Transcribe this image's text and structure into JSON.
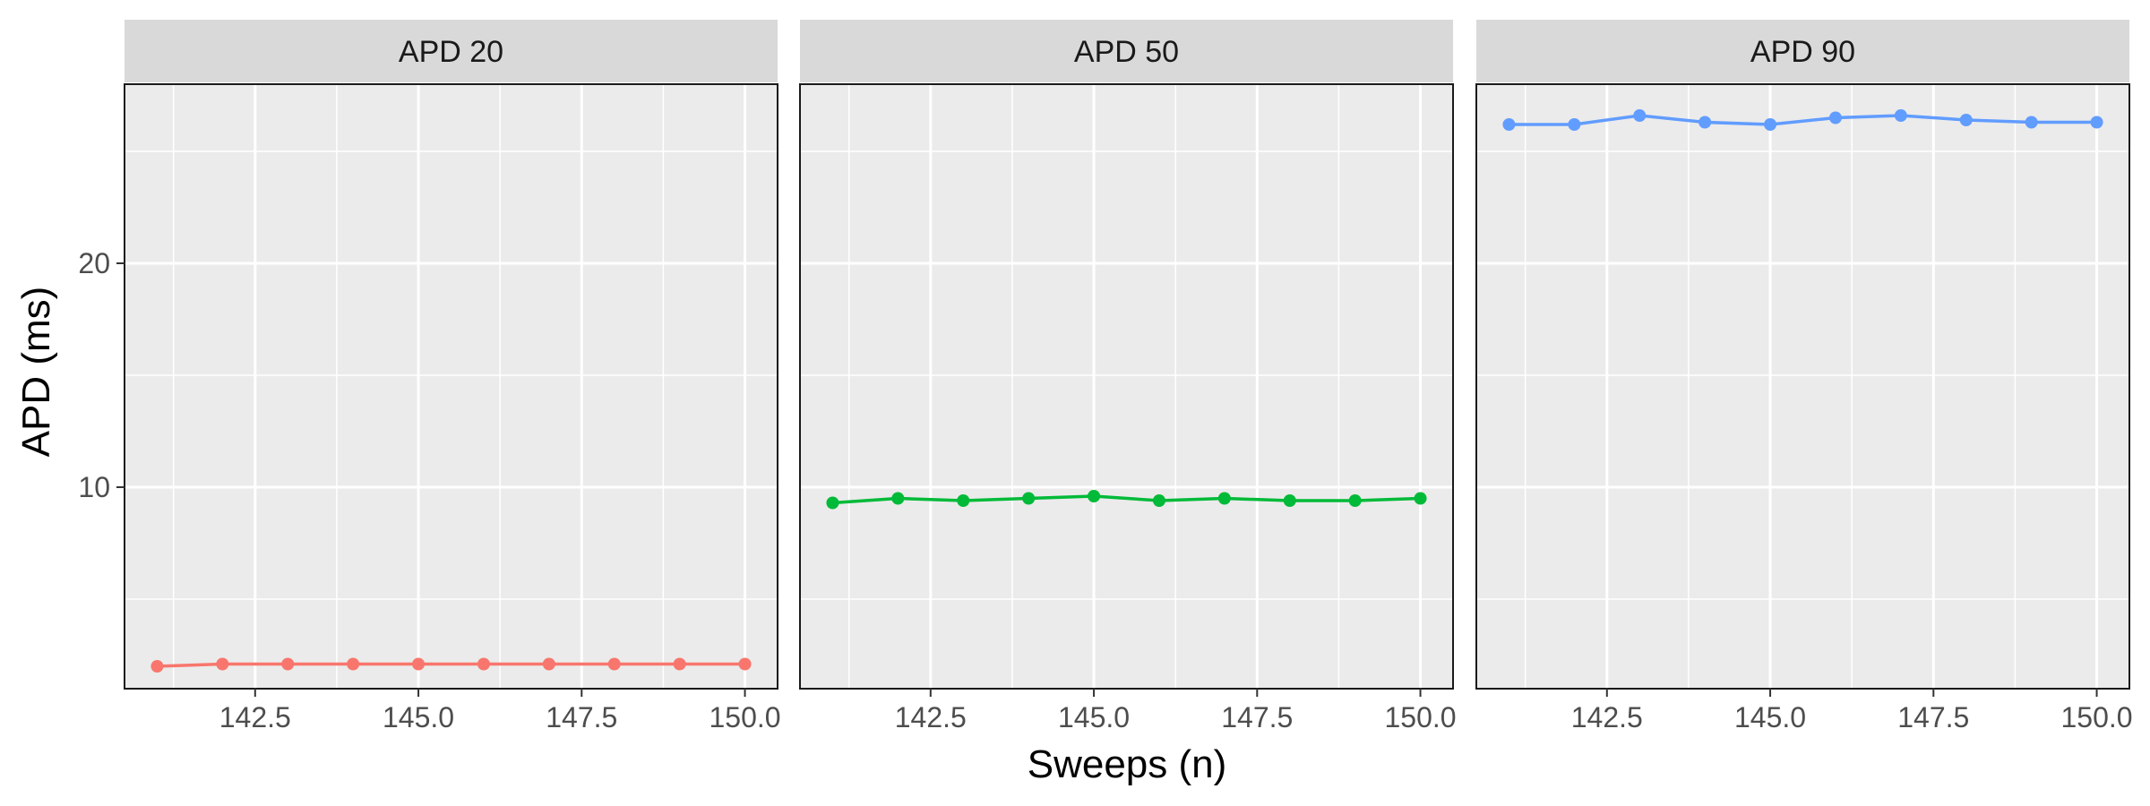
{
  "chart_data": {
    "type": "line",
    "facet_layout": "three panels in one row, shared y axis",
    "xlabel": "Sweeps (n)",
    "ylabel": "APD (ms)",
    "xlim": [
      140.5,
      150.5
    ],
    "ylim": [
      1.0,
      28.0
    ],
    "x_ticks": [
      142.5,
      145.0,
      147.5,
      150.0
    ],
    "x_tick_labels": [
      "142.5",
      "145.0",
      "147.5",
      "150.0"
    ],
    "y_ticks": [
      10,
      20
    ],
    "y_tick_labels": [
      "10",
      "20"
    ],
    "grid": true,
    "legend": "none",
    "x": [
      141,
      142,
      143,
      144,
      145,
      146,
      147,
      148,
      149,
      150
    ],
    "series": [
      {
        "name": "APD 20",
        "color": "#F8766D",
        "values": [
          2.0,
          2.1,
          2.1,
          2.1,
          2.1,
          2.1,
          2.1,
          2.1,
          2.1,
          2.1
        ]
      },
      {
        "name": "APD 50",
        "color": "#00BA38",
        "values": [
          9.3,
          9.5,
          9.4,
          9.5,
          9.6,
          9.4,
          9.5,
          9.4,
          9.4,
          9.5
        ]
      },
      {
        "name": "APD 90",
        "color": "#619CFF",
        "values": [
          26.2,
          26.2,
          26.6,
          26.3,
          26.2,
          26.5,
          26.6,
          26.4,
          26.3,
          26.3
        ]
      }
    ]
  }
}
